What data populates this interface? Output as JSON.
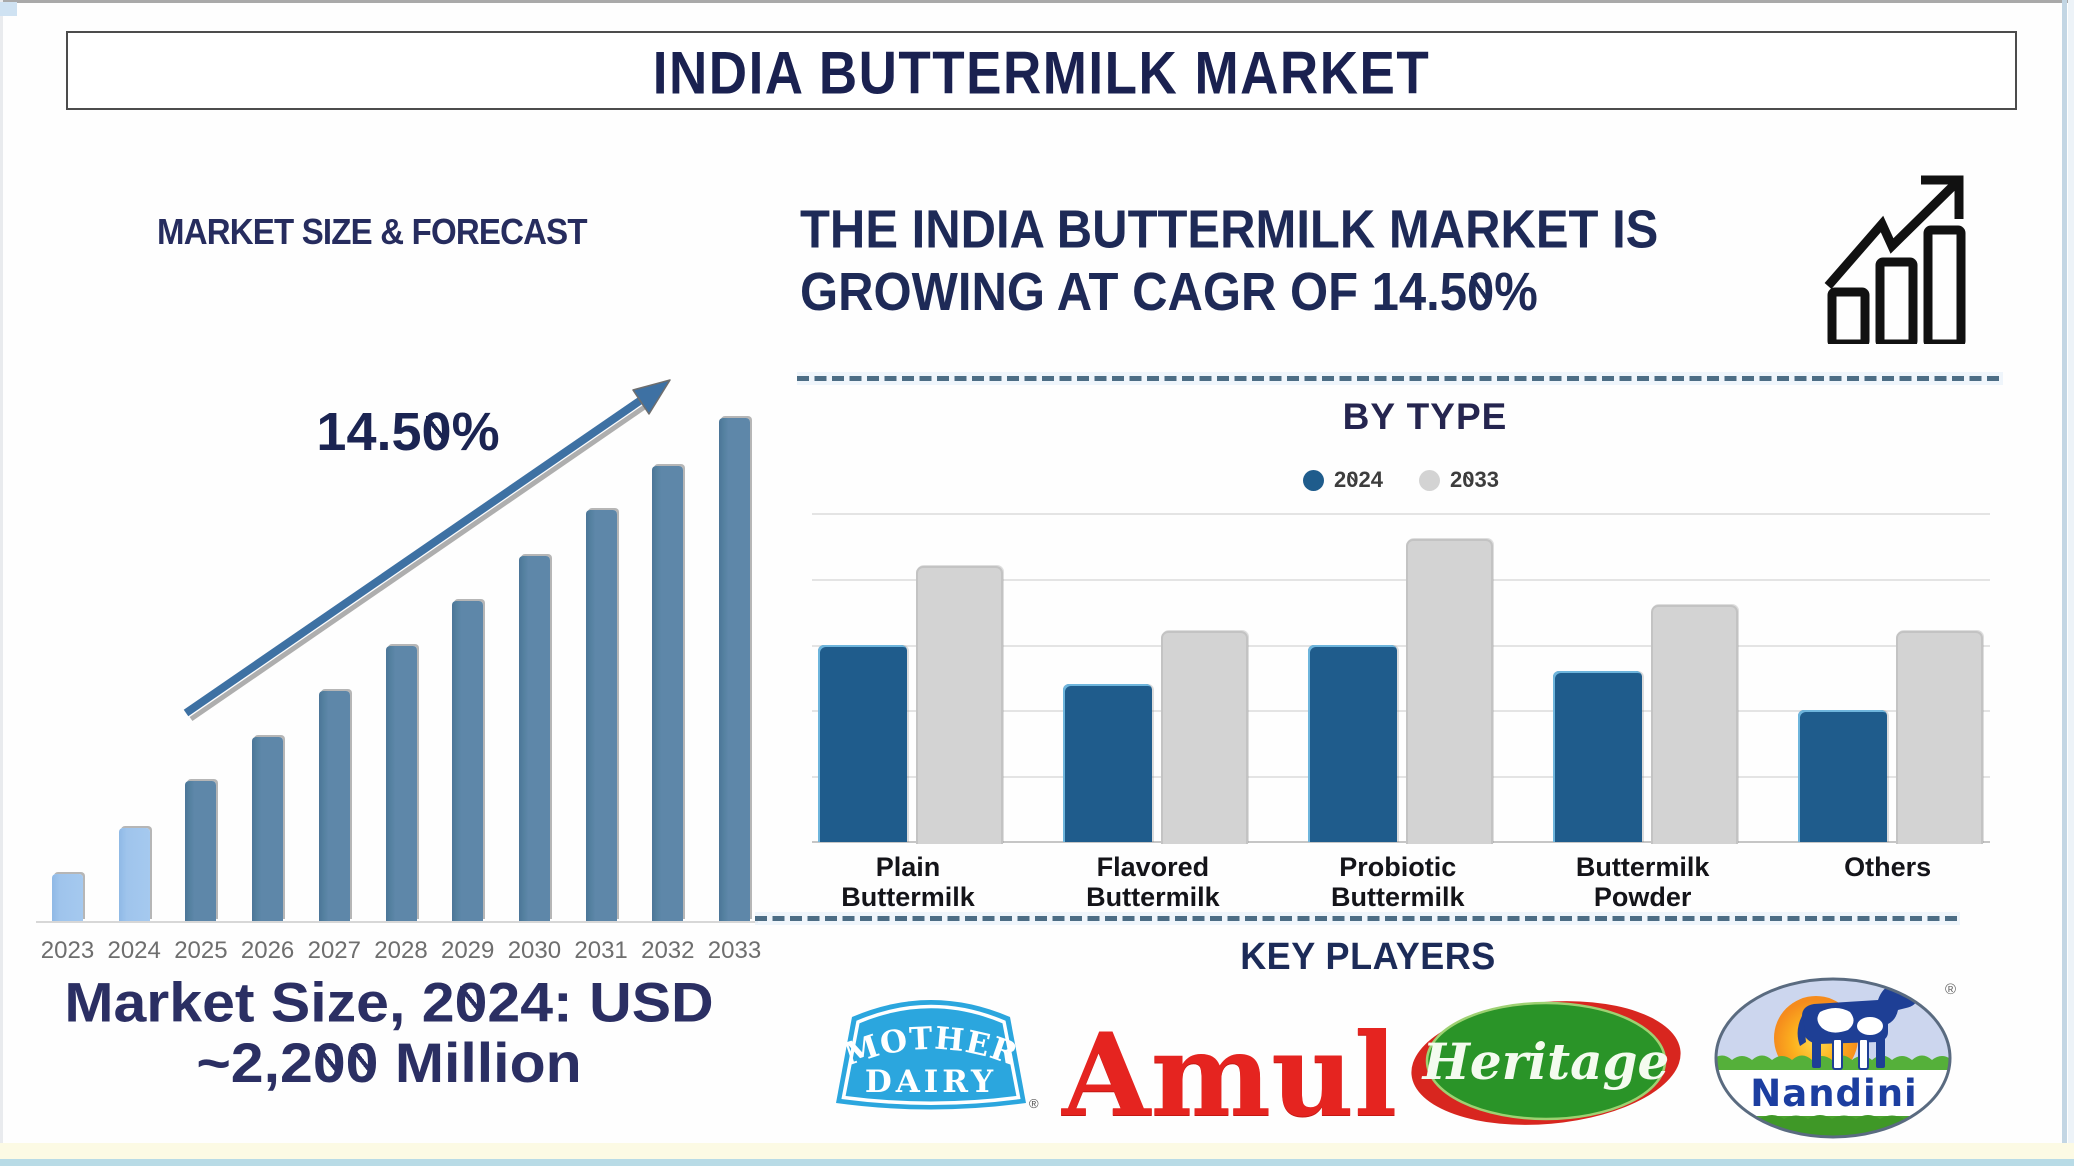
{
  "page_title": "INDIA BUTTERMILK MARKET",
  "left_panel": {
    "heading": "MARKET SIZE & FORECAST",
    "cagr_label": "14.50%",
    "footnote_line1": "Market Size, 2024: USD",
    "footnote_line2": "~2,200 Million"
  },
  "right_panel": {
    "headline_line1": "THE INDIA BUTTERMILK MARKET IS",
    "headline_line2": "GROWING AT CAGR OF 14.50%",
    "growth_icon": "bar-chart-growth-icon"
  },
  "by_type": {
    "title": "BY TYPE"
  },
  "key_players": {
    "title": "KEY PLAYERS",
    "brands": [
      "Mother Dairy",
      "Amul",
      "Heritage",
      "Nandini"
    ],
    "mother_dairy": {
      "line1": "MOTHER",
      "line2": "DAIRY",
      "reg_mark": "®"
    },
    "amul": {
      "text": "Amul"
    },
    "heritage": {
      "text": "Heritage"
    },
    "nandini": {
      "text": "Nandini",
      "reg_mark": "®"
    }
  },
  "chart_data": [
    {
      "type": "bar",
      "title": "MARKET SIZE & FORECAST",
      "categories": [
        "2023",
        "2024",
        "2025",
        "2026",
        "2027",
        "2028",
        "2029",
        "2030",
        "2031",
        "2032",
        "2033"
      ],
      "values": [
        9.3,
        18.5,
        27.8,
        36.6,
        45.7,
        54.7,
        63.6,
        72.6,
        81.7,
        90.5,
        100
      ],
      "unit": "relative height (2033 = 100)",
      "annotation": "14.50%",
      "highlight_color": "#a6c9ee",
      "bar_color": "#5e87a9",
      "highlighted_categories": [
        "2023",
        "2024"
      ],
      "xlabel": "",
      "ylabel": "",
      "grid": false,
      "trend_arrow": true
    },
    {
      "type": "bar",
      "title": "BY TYPE",
      "categories": [
        "Plain Buttermilk",
        "Flavored Buttermilk",
        "Probiotic Buttermilk",
        "Buttermilk Powder",
        "Others"
      ],
      "series": [
        {
          "name": "2024",
          "color": "#1f5c8c",
          "values": [
            60,
            48,
            60,
            52,
            40
          ]
        },
        {
          "name": "2033",
          "color": "#d3d3d3",
          "values": [
            84,
            64,
            92,
            72,
            64
          ]
        }
      ],
      "unit": "relative (axis max = 100)",
      "ylim": [
        0,
        100
      ],
      "grid": true,
      "gridline_step": 20,
      "legend_position": "top center"
    }
  ]
}
